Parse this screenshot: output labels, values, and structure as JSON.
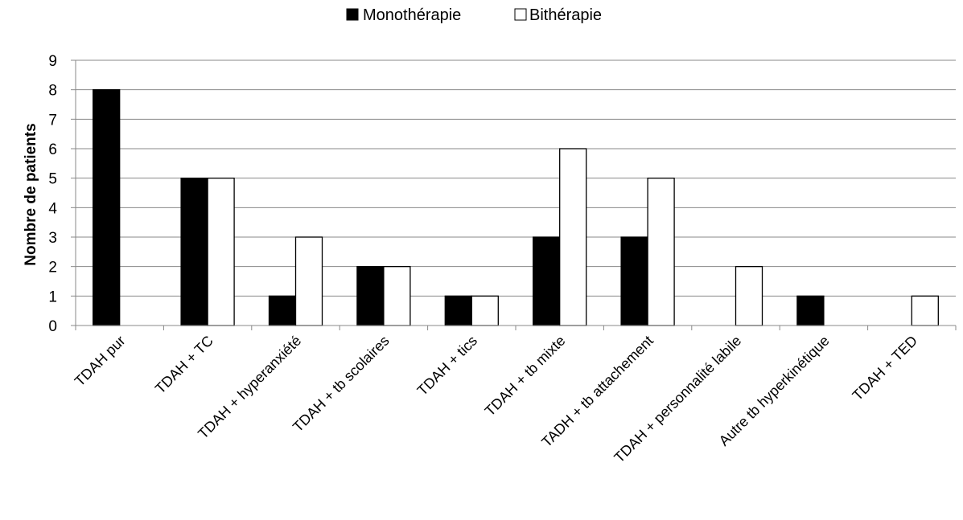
{
  "chart_data": {
    "type": "bar",
    "title": "",
    "xlabel": "",
    "ylabel": "Nombre de patients",
    "ylim": [
      0,
      9
    ],
    "yticks": [
      0,
      1,
      2,
      3,
      4,
      5,
      6,
      7,
      8,
      9
    ],
    "grid": true,
    "legend_position": "top",
    "categories": [
      "TDAH pur",
      "TDAH + TC",
      "TDAH + hyperanxiété",
      "TDAH + tb scolaires",
      "TDAH + tics",
      "TDAH + tb mixte",
      "TADH + tb attachement",
      "TDAH + personnalité labile",
      "Autre tb hyperkinétique",
      "TDAH + TED"
    ],
    "series": [
      {
        "name": "Monothérapie",
        "color": "#000000",
        "values": [
          8,
          5,
          1,
          2,
          1,
          3,
          3,
          0,
          1,
          0
        ]
      },
      {
        "name": "Bithérapie",
        "color": "#ffffff",
        "values": [
          0,
          5,
          3,
          2,
          1,
          6,
          5,
          2,
          0,
          1
        ]
      }
    ]
  }
}
